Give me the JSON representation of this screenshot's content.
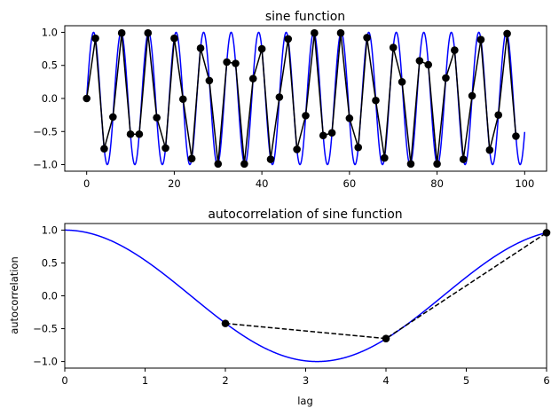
{
  "figure": {
    "background": "#ffffff",
    "curve_color": "#0000ff",
    "sample_color": "#000000"
  },
  "chart_data": [
    {
      "type": "line",
      "title": "sine function",
      "xlabel": "",
      "ylabel": "",
      "xlim": [
        -5,
        105
      ],
      "ylim": [
        -1.1,
        1.1
      ],
      "xticks": [
        0,
        20,
        40,
        60,
        80,
        100
      ],
      "yticks": [
        -1.0,
        -0.5,
        0.0,
        0.5,
        1.0
      ],
      "xtick_labels": [
        "0",
        "20",
        "40",
        "60",
        "80",
        "100"
      ],
      "ytick_labels": [
        "−1.0",
        "−0.5",
        "0.0",
        "0.5",
        "1.0"
      ],
      "grid": false,
      "series": [
        {
          "style": "solid line",
          "color": "#0000ff",
          "function": "sin(x)",
          "x_range": [
            0,
            100
          ]
        },
        {
          "style": "solid line with circle markers",
          "color": "#000000",
          "x": [
            0,
            2,
            4,
            6,
            8,
            10,
            12,
            14,
            16,
            18,
            20,
            22,
            24,
            26,
            28,
            30,
            32,
            34,
            36,
            38,
            40,
            42,
            44,
            46,
            48,
            50,
            52,
            54,
            56,
            58,
            60,
            62,
            64,
            66,
            68,
            70,
            72,
            74,
            76,
            78,
            80,
            82,
            84,
            86,
            88,
            90,
            92,
            94,
            96,
            98
          ],
          "y": [
            0.0,
            0.91,
            -0.76,
            -0.28,
            0.99,
            -0.54,
            -0.54,
            0.99,
            -0.29,
            -0.75,
            0.91,
            -0.01,
            -0.91,
            0.76,
            0.27,
            -0.99,
            0.55,
            0.53,
            -0.99,
            0.3,
            0.75,
            -0.92,
            0.02,
            0.9,
            -0.77,
            -0.26,
            0.99,
            -0.56,
            -0.52,
            0.99,
            -0.3,
            -0.74,
            0.92,
            -0.03,
            -0.9,
            0.77,
            0.25,
            -0.99,
            0.57,
            0.51,
            -0.99,
            0.31,
            0.73,
            -0.92,
            0.04,
            0.89,
            -0.78,
            -0.25,
            0.98,
            -0.57
          ]
        }
      ]
    },
    {
      "type": "line",
      "title": "autocorrelation of sine function",
      "xlabel": "lag",
      "ylabel": "autocorrelation",
      "xlim": [
        0,
        6
      ],
      "ylim": [
        -1.1,
        1.1
      ],
      "xticks": [
        0,
        1,
        2,
        3,
        4,
        5,
        6
      ],
      "yticks": [
        -1.0,
        -0.5,
        0.0,
        0.5,
        1.0
      ],
      "xtick_labels": [
        "0",
        "1",
        "2",
        "3",
        "4",
        "5",
        "6"
      ],
      "ytick_labels": [
        "−1.0",
        "−0.5",
        "0.0",
        "0.5",
        "1.0"
      ],
      "grid": false,
      "series": [
        {
          "style": "solid line",
          "color": "#0000ff",
          "function": "cos(x)",
          "x_range": [
            0,
            6
          ]
        },
        {
          "style": "dashed line with circle markers",
          "color": "#000000",
          "x": [
            2,
            4,
            6
          ],
          "y": [
            -0.42,
            -0.65,
            0.96
          ]
        }
      ]
    }
  ]
}
